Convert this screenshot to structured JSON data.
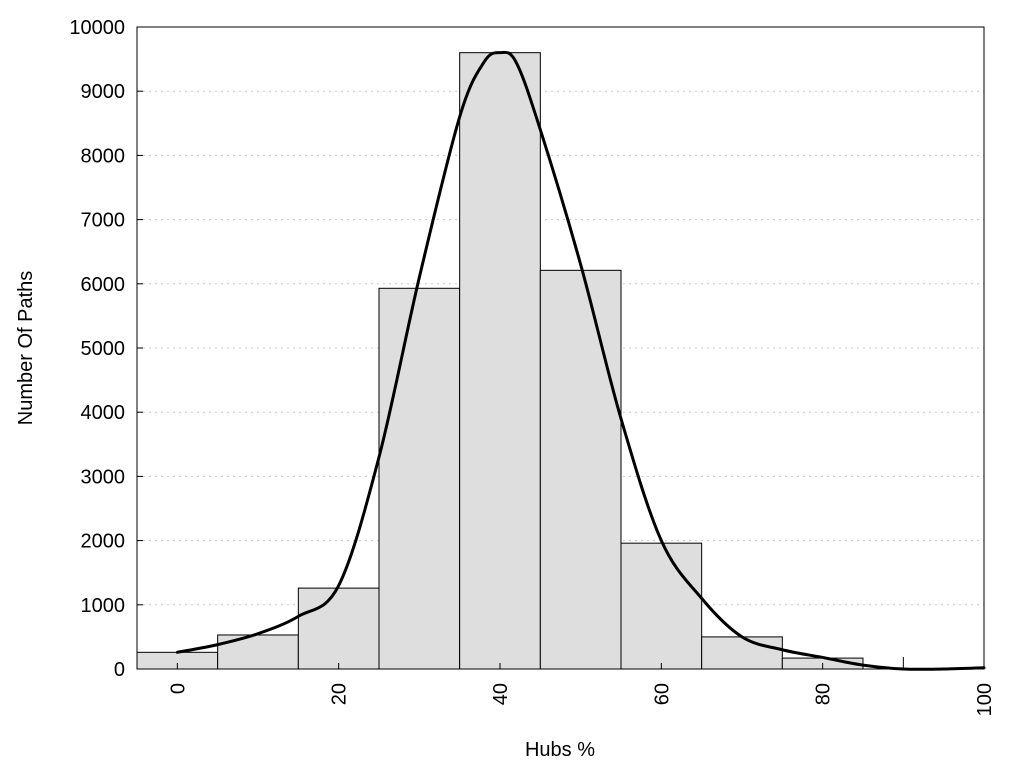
{
  "chart_data": {
    "type": "bar",
    "title": "",
    "xlabel": "Hubs %",
    "ylabel": "Number Of Paths",
    "xlim": [
      -5,
      100
    ],
    "ylim": [
      0,
      10000
    ],
    "grid": true,
    "x_ticks": [
      0,
      20,
      40,
      60,
      80,
      100
    ],
    "y_ticks": [
      0,
      1000,
      2000,
      3000,
      4000,
      5000,
      6000,
      7000,
      8000,
      9000,
      10000
    ],
    "bin_width": 10,
    "bins": [
      {
        "center": 0,
        "value": 260
      },
      {
        "center": 10,
        "value": 530
      },
      {
        "center": 20,
        "value": 1260
      },
      {
        "center": 30,
        "value": 5930
      },
      {
        "center": 40,
        "value": 9600
      },
      {
        "center": 50,
        "value": 6210
      },
      {
        "center": 60,
        "value": 1960
      },
      {
        "center": 70,
        "value": 500
      },
      {
        "center": 80,
        "value": 170
      },
      {
        "center": 90,
        "value": 0
      }
    ],
    "fit_curve": {
      "x": [
        0,
        5,
        10,
        15,
        20,
        25,
        30,
        35,
        38,
        40,
        42,
        45,
        50,
        55,
        60,
        65,
        70,
        75,
        80,
        85,
        90,
        95,
        100
      ],
      "y": [
        260,
        380,
        550,
        820,
        1300,
        3300,
        6100,
        8600,
        9450,
        9600,
        9450,
        8400,
        6300,
        3900,
        2000,
        1100,
        500,
        300,
        180,
        60,
        0,
        0,
        20
      ]
    }
  }
}
